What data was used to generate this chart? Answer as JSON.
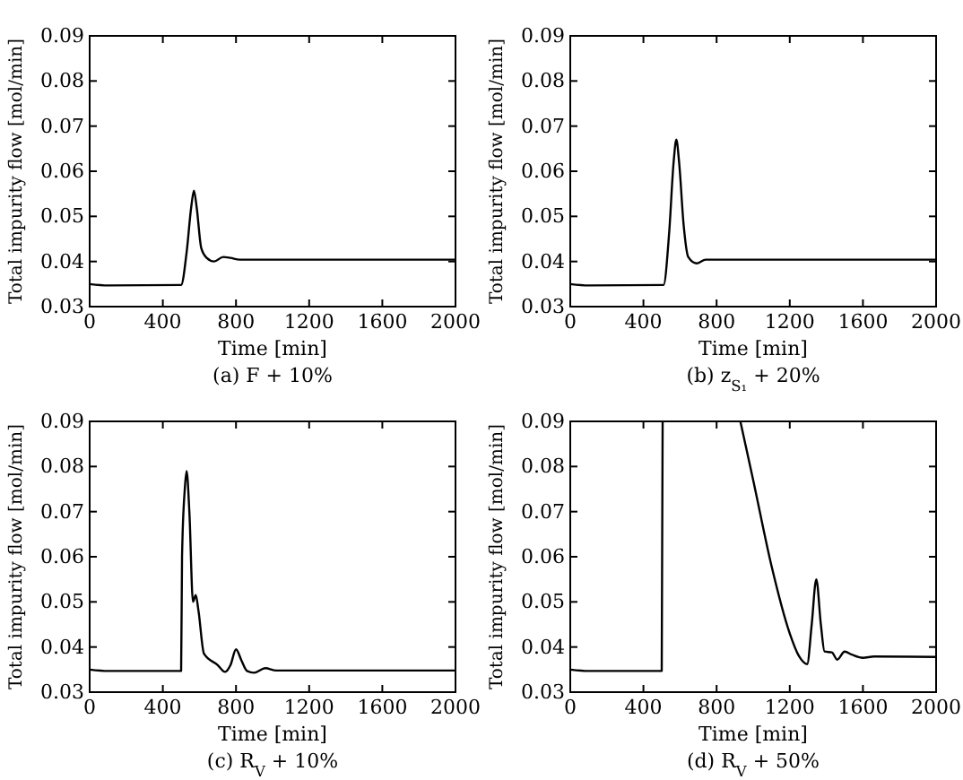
{
  "chart_data": [
    {
      "type": "line",
      "title": "(a) F + 10%",
      "xlabel": "Time [min]",
      "ylabel": "Total impurity flow [mol/min]",
      "xlim": [
        0,
        2000
      ],
      "xticks": [
        0,
        400,
        800,
        1200,
        1600,
        2000
      ],
      "ylim": [
        0.03,
        0.09
      ],
      "yticks": [
        0.03,
        0.04,
        0.05,
        0.06,
        0.07,
        0.08,
        0.09
      ],
      "series": [
        {
          "color": "#000000",
          "x": [
            0,
            100,
            500,
            530,
            555,
            570,
            585,
            610,
            640,
            680,
            730,
            770,
            820,
            2000
          ],
          "values": [
            0.035,
            0.0347,
            0.0348,
            0.042,
            0.052,
            0.0557,
            0.052,
            0.043,
            0.0408,
            0.04,
            0.041,
            0.0408,
            0.0404,
            0.0404
          ]
        }
      ]
    },
    {
      "type": "line",
      "title": "(b) z$_{S₁}$ + 20%",
      "xlabel": "Time [min]",
      "ylabel": "Total impurity flow [mol/min]",
      "xlim": [
        0,
        2000
      ],
      "xticks": [
        0,
        400,
        800,
        1200,
        1600,
        2000
      ],
      "ylim": [
        0.03,
        0.09
      ],
      "yticks": [
        0.03,
        0.04,
        0.05,
        0.06,
        0.07,
        0.08,
        0.09
      ],
      "series": [
        {
          "color": "#000000",
          "x": [
            0,
            100,
            510,
            540,
            565,
            580,
            595,
            620,
            645,
            690,
            740,
            2000
          ],
          "values": [
            0.035,
            0.0347,
            0.0348,
            0.046,
            0.062,
            0.067,
            0.062,
            0.048,
            0.041,
            0.0396,
            0.0404,
            0.0404
          ]
        }
      ]
    },
    {
      "type": "line",
      "title": "(c) R$_{V}$ + 10%",
      "xlabel": "Time [min]",
      "ylabel": "Total impurity flow [mol/min]",
      "xlim": [
        0,
        2000
      ],
      "xticks": [
        0,
        400,
        800,
        1200,
        1600,
        2000
      ],
      "ylim": [
        0.03,
        0.09
      ],
      "yticks": [
        0.03,
        0.04,
        0.05,
        0.06,
        0.07,
        0.08,
        0.09
      ],
      "series": [
        {
          "color": "#000000",
          "x": [
            0,
            100,
            500,
            505,
            520,
            530,
            545,
            565,
            580,
            595,
            625,
            700,
            740,
            770,
            800,
            830,
            860,
            900,
            960,
            1020,
            2000
          ],
          "values": [
            0.035,
            0.0347,
            0.0347,
            0.06,
            0.075,
            0.079,
            0.07,
            0.05,
            0.0515,
            0.048,
            0.0385,
            0.036,
            0.0345,
            0.036,
            0.0395,
            0.037,
            0.0347,
            0.0343,
            0.0353,
            0.0348,
            0.0348
          ]
        }
      ]
    },
    {
      "type": "line",
      "title": "(d) R$_{V}$ + 50%",
      "xlabel": "Time [min]",
      "ylabel": "Total impurity flow [mol/min]",
      "xlim": [
        0,
        2000
      ],
      "xticks": [
        0,
        400,
        800,
        1200,
        1600,
        2000
      ],
      "ylim": [
        0.03,
        0.09
      ],
      "yticks": [
        0.03,
        0.04,
        0.05,
        0.06,
        0.07,
        0.08,
        0.09
      ],
      "series": [
        {
          "color": "#000000",
          "x": [
            0,
            100,
            500,
            505,
            700,
            930,
            1000,
            1100,
            1200,
            1250,
            1295,
            1320,
            1345,
            1370,
            1390,
            1430,
            1460,
            1500,
            1540,
            1600,
            1660,
            2000
          ],
          "values": [
            0.035,
            0.0347,
            0.0347,
            0.09,
            null,
            0.09,
            0.077,
            0.058,
            0.043,
            0.038,
            0.0362,
            0.045,
            0.055,
            0.045,
            0.039,
            0.0388,
            0.0372,
            0.039,
            0.0383,
            0.0376,
            0.0379,
            0.0378
          ]
        }
      ]
    }
  ]
}
